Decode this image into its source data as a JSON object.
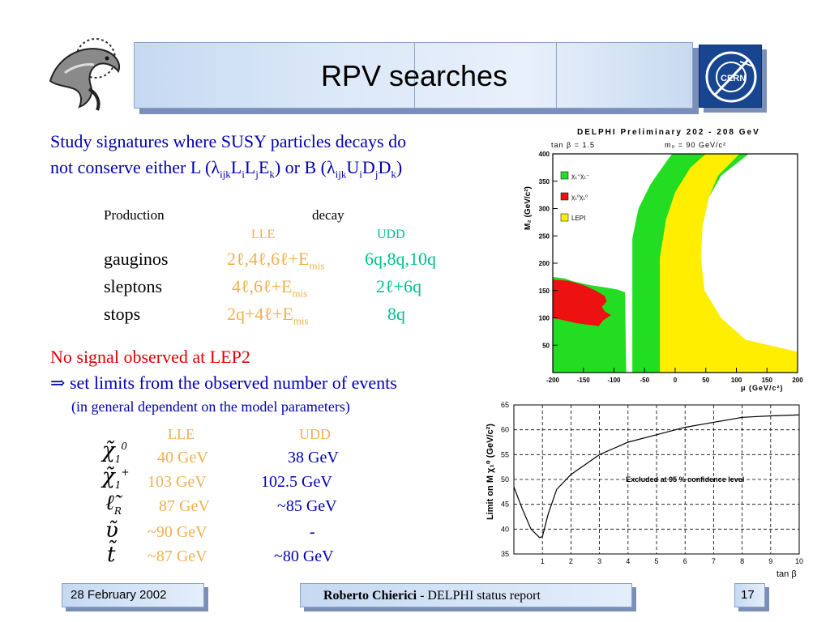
{
  "slide": {
    "title": "RPV searches",
    "date": "28 February 2002",
    "author": "Roberto Chierici",
    "report": " - DELPHI status report",
    "page_number": "17"
  },
  "intro": {
    "line1": "Study signatures where SUSY particles decays do",
    "line2_prefix": "not conserve either L (",
    "lambda": "λ",
    "sub_ijk": "ijk",
    "L": "L",
    "E": "E",
    "U": "U",
    "D": "D",
    "i": "i",
    "j": "j",
    "k": "k",
    "or_b": ") or B (",
    "close": ")"
  },
  "production_table": {
    "header_production": "Production",
    "header_decay": "decay",
    "header_lle": "LLE",
    "header_udd": "UDD",
    "rows": [
      {
        "name": "gauginos",
        "lle": "2ℓ,4ℓ,6ℓ+E",
        "lle_sub": "mis",
        "udd": "6q,8q,10q"
      },
      {
        "name": "sleptons",
        "lle": "4ℓ,6ℓ+E",
        "lle_sub": "mis",
        "udd": "2ℓ+6q"
      },
      {
        "name": "stops",
        "lle": "2q+4ℓ+E",
        "lle_sub": "mis",
        "udd": "8q"
      }
    ]
  },
  "no_signal": {
    "line1": "No signal observed at LEP2",
    "arrow": "⇒",
    "line2": " set limits from the observed number of events",
    "line3": "(in general dependent on the model parameters)"
  },
  "limits_table": {
    "header_lle": "LLE",
    "header_udd": "UDD",
    "rows": [
      {
        "symbol": "χ̃",
        "sub": "1",
        "sup": "0",
        "lle": "40 GeV",
        "udd": "38 GeV"
      },
      {
        "symbol": "χ̃",
        "sub": "1",
        "sup": "+",
        "lle": "103 GeV",
        "udd": "102.5 GeV"
      },
      {
        "symbol": "ℓ̃",
        "sub": "R",
        "sup": "",
        "lle": "87 GeV",
        "udd": "~85 GeV"
      },
      {
        "symbol": "ῦ",
        "sub": "",
        "sup": "",
        "lle": "~90 GeV",
        "udd": "-"
      },
      {
        "symbol": "t̃",
        "sub": "",
        "sup": "",
        "lle": "~87 GeV",
        "udd": "~80 GeV"
      }
    ]
  },
  "chart_data": [
    {
      "type": "area",
      "title": "DELPHI Preliminary      202 - 208 GeV",
      "subtitle_left": "tan β = 1.5",
      "subtitle_right": "m₀ = 90 GeV/c²",
      "xlabel": "μ (GeV/c²)",
      "ylabel": "M₂ (GeV/c²)",
      "xlim": [
        -200,
        200
      ],
      "ylim": [
        0,
        400
      ],
      "x_ticks": [
        "-200",
        "-150",
        "-100",
        "-50",
        "0",
        "50",
        "100",
        "150",
        "200"
      ],
      "y_ticks": [
        "50",
        "100",
        "150",
        "200",
        "250",
        "300",
        "350",
        "400"
      ],
      "legend": [
        {
          "label": "χ₁⁺χ₁⁻",
          "color": "#22dd22"
        },
        {
          "label": "χ₁⁰χ₁⁰",
          "color": "#ee1111"
        },
        {
          "label": "LEPI",
          "color": "#ffee00"
        }
      ],
      "legend_position": "top-left",
      "regions": {
        "yellow_right": [
          [
            -52,
            0
          ],
          [
            -52,
            245
          ],
          [
            -55,
            290
          ],
          [
            -48,
            330
          ],
          [
            -35,
            370
          ],
          [
            -25,
            400
          ],
          [
            200,
            400
          ],
          [
            200,
            0
          ]
        ],
        "green_right": [
          [
            -70,
            0
          ],
          [
            -70,
            245
          ],
          [
            -60,
            300
          ],
          [
            -40,
            345
          ],
          [
            -15,
            385
          ],
          [
            -5,
            400
          ],
          [
            120,
            400
          ],
          [
            75,
            360
          ],
          [
            55,
            320
          ],
          [
            45,
            270
          ],
          [
            40,
            210
          ],
          [
            45,
            150
          ],
          [
            70,
            100
          ],
          [
            110,
            60
          ],
          [
            200,
            30
          ],
          [
            200,
            0
          ]
        ],
        "yellow_band": [
          [
            -25,
            0
          ],
          [
            -25,
            210
          ],
          [
            -15,
            280
          ],
          [
            0,
            330
          ],
          [
            25,
            375
          ],
          [
            50,
            400
          ],
          [
            105,
            400
          ],
          [
            70,
            360
          ],
          [
            55,
            320
          ],
          [
            45,
            270
          ],
          [
            42,
            210
          ],
          [
            48,
            150
          ],
          [
            75,
            100
          ],
          [
            115,
            60
          ],
          [
            200,
            38
          ],
          [
            200,
            0
          ]
        ],
        "green_left": [
          [
            -200,
            0
          ],
          [
            -200,
            175
          ],
          [
            -180,
            172
          ],
          [
            -170,
            168
          ],
          [
            -140,
            160
          ],
          [
            -110,
            155
          ],
          [
            -95,
            152
          ],
          [
            -82,
            147
          ],
          [
            -80,
            0
          ]
        ],
        "red_left": [
          [
            -200,
            110
          ],
          [
            -200,
            170
          ],
          [
            -175,
            168
          ],
          [
            -150,
            160
          ],
          [
            -130,
            150
          ],
          [
            -115,
            140
          ],
          [
            -112,
            130
          ],
          [
            -120,
            120
          ],
          [
            -115,
            112
          ],
          [
            -105,
            105
          ],
          [
            -118,
            95
          ],
          [
            -125,
            85
          ],
          [
            -160,
            90
          ],
          [
            -200,
            100
          ]
        ]
      }
    },
    {
      "type": "line",
      "xlabel": "tan β",
      "ylabel": "Limit on M χ₁⁰ (GeV/c²)",
      "xlim": [
        0,
        10
      ],
      "ylim": [
        35,
        65
      ],
      "x_ticks": [
        "1",
        "2",
        "3",
        "4",
        "5",
        "6",
        "7",
        "8",
        "9",
        "10"
      ],
      "y_ticks": [
        "35",
        "40",
        "45",
        "50",
        "55",
        "60",
        "65"
      ],
      "annotation": "Excluded at 95 % confidence level",
      "x": [
        0,
        0.3,
        0.6,
        0.9,
        1.0,
        1.2,
        1.5,
        2,
        2.5,
        3,
        4,
        5,
        6,
        7,
        8,
        9,
        10
      ],
      "y": [
        48.5,
        44,
        40,
        38.3,
        38.5,
        43,
        48,
        51,
        53,
        55,
        57.5,
        59,
        60.5,
        61.5,
        62.5,
        62.8,
        63
      ]
    }
  ]
}
